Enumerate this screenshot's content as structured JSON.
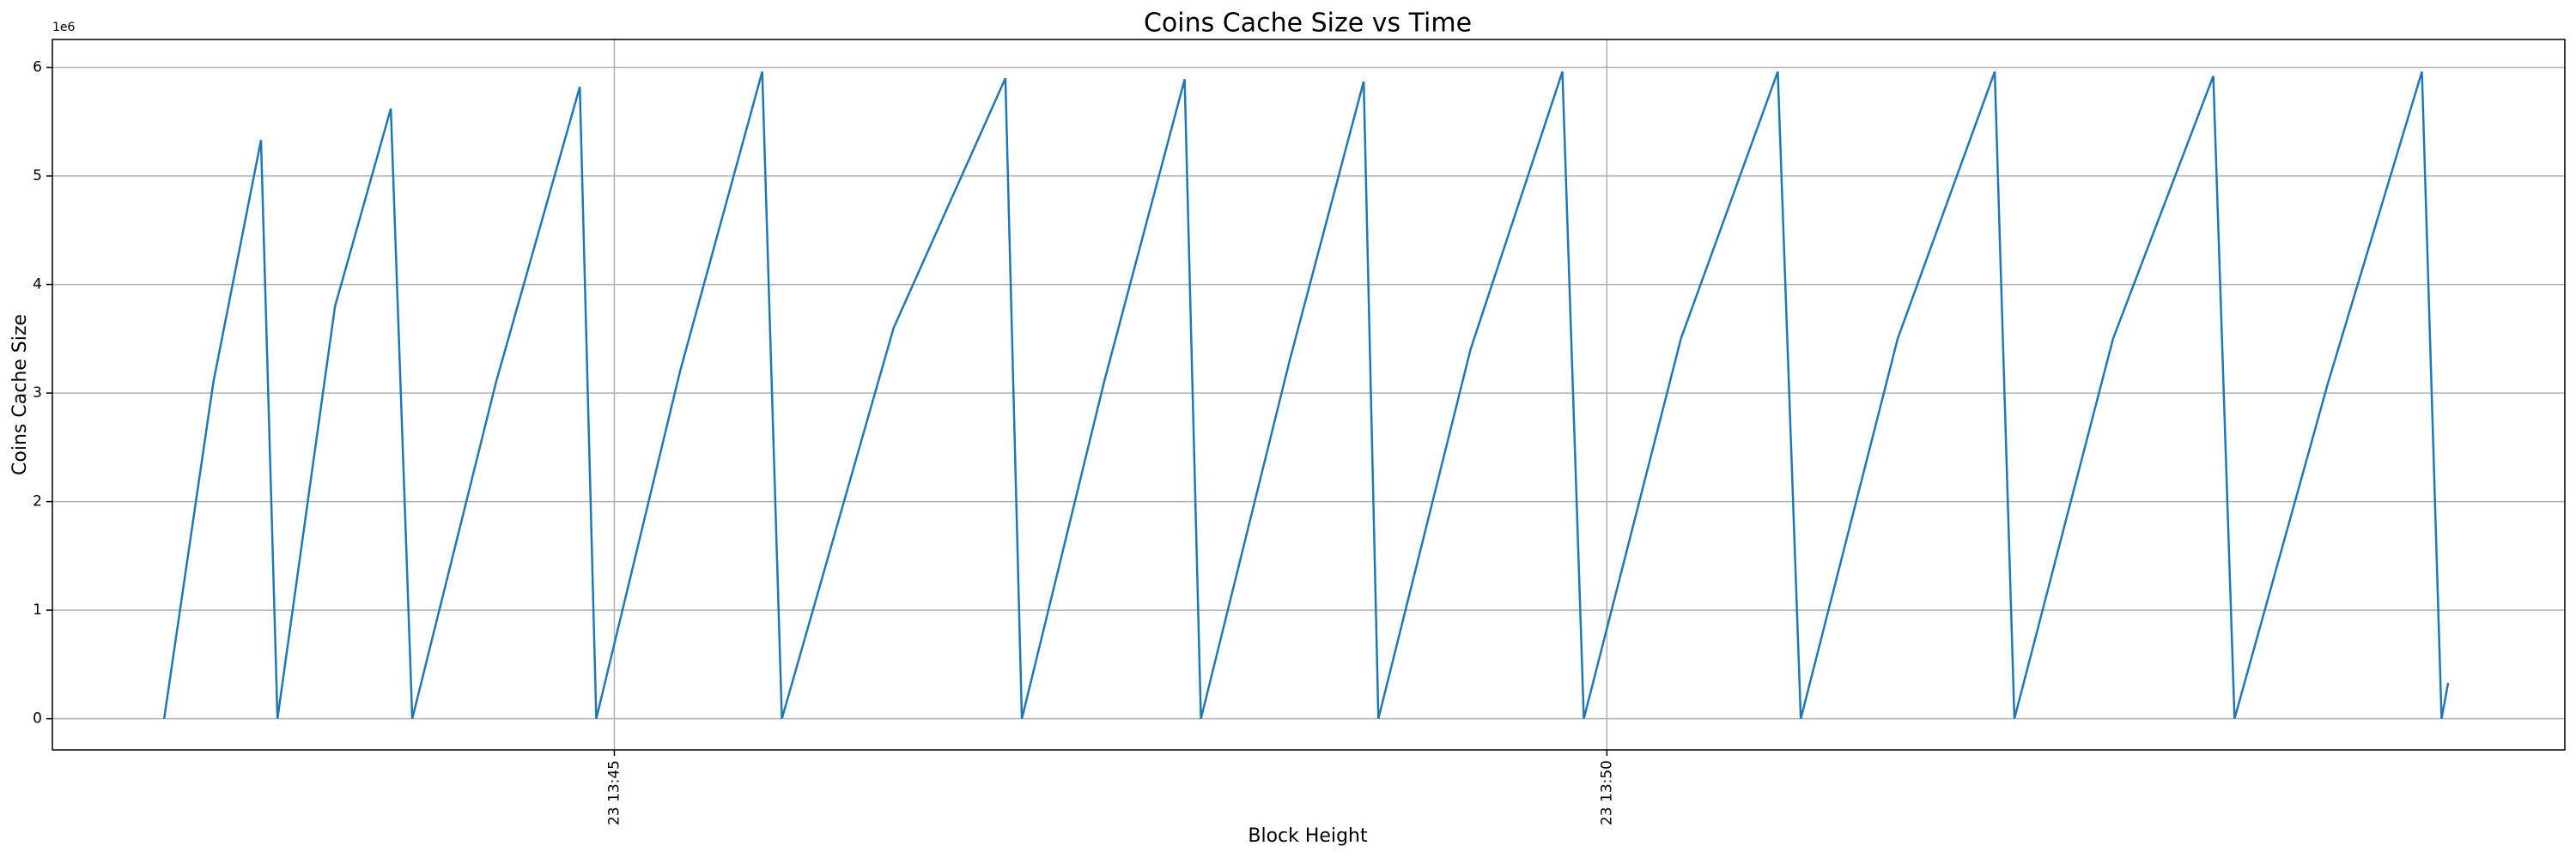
{
  "chart_data": {
    "type": "line",
    "title": "Coins Cache Size vs Time",
    "x_label": "Block Height",
    "y_label": "Coins Cache Size",
    "y_offset_label": "1e6",
    "color": "#1f77b4",
    "grid": true,
    "x": [
      42.732,
      42.98,
      43.22,
      43.303,
      43.593,
      43.874,
      43.982,
      44.404,
      44.826,
      44.909,
      45.331,
      45.745,
      45.844,
      46.407,
      46.97,
      47.053,
      47.467,
      47.873,
      47.955,
      48.402,
      48.775,
      48.849,
      49.313,
      49.776,
      49.884,
      50.373,
      50.861,
      50.977,
      51.465,
      51.954,
      52.053,
      52.55,
      53.055,
      53.162,
      53.634,
      54.106,
      54.205,
      54.238
    ],
    "values": [
      0,
      3.1,
      5.33,
      0,
      3.8,
      5.62,
      0,
      3.1,
      5.82,
      0,
      3.2,
      5.96,
      0,
      3.6,
      5.9,
      0,
      3.1,
      5.89,
      0,
      3.3,
      5.87,
      0,
      3.4,
      5.96,
      0,
      3.5,
      5.96,
      0,
      3.5,
      5.96,
      0,
      3.5,
      5.92,
      0,
      3.1,
      5.96,
      0,
      0.33
    ],
    "xlim": [
      42.169,
      54.826
    ],
    "xticks": [
      {
        "value": 45,
        "label": "23 13:45"
      },
      {
        "value": 50,
        "label": "23 13:50"
      }
    ],
    "ylim": [
      -0.287,
      6.257
    ],
    "yticks": [
      0,
      1,
      2,
      3,
      4,
      5,
      6
    ]
  }
}
